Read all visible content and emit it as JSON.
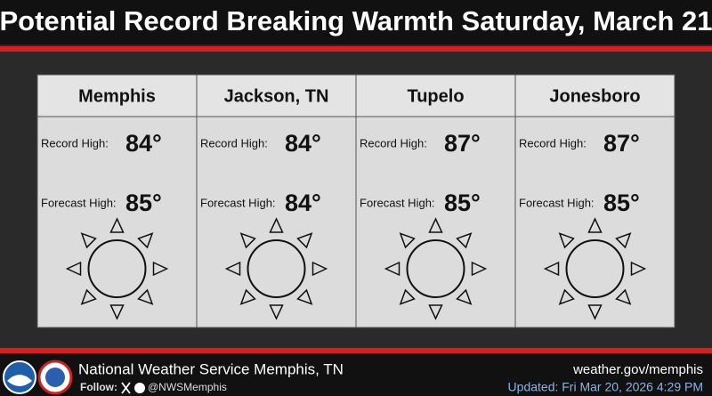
{
  "header": {
    "title": "Potential Record Breaking Warmth Saturday, March 21"
  },
  "cities": [
    {
      "name": "Memphis",
      "record_label": "Record High:",
      "record": "84°",
      "forecast_label": "Forecast High:",
      "forecast": "85°"
    },
    {
      "name": "Jackson, TN",
      "record_label": "Record High:",
      "record": "84°",
      "forecast_label": "Forecast High:",
      "forecast": "84°"
    },
    {
      "name": "Tupelo",
      "record_label": "Record High:",
      "record": "87°",
      "forecast_label": "Forecast High:",
      "forecast": "85°"
    },
    {
      "name": "Jonesboro",
      "record_label": "Record High:",
      "record": "87°",
      "forecast_label": "Forecast High:",
      "forecast": "85°"
    }
  ],
  "footer": {
    "office": "National Weather Service Memphis, TN",
    "follow": "Follow:",
    "handle": "@NWSMemphis",
    "website": "weather.gov/memphis",
    "updated": "Updated: Fri Mar 20, 2026 4:29 PM"
  }
}
